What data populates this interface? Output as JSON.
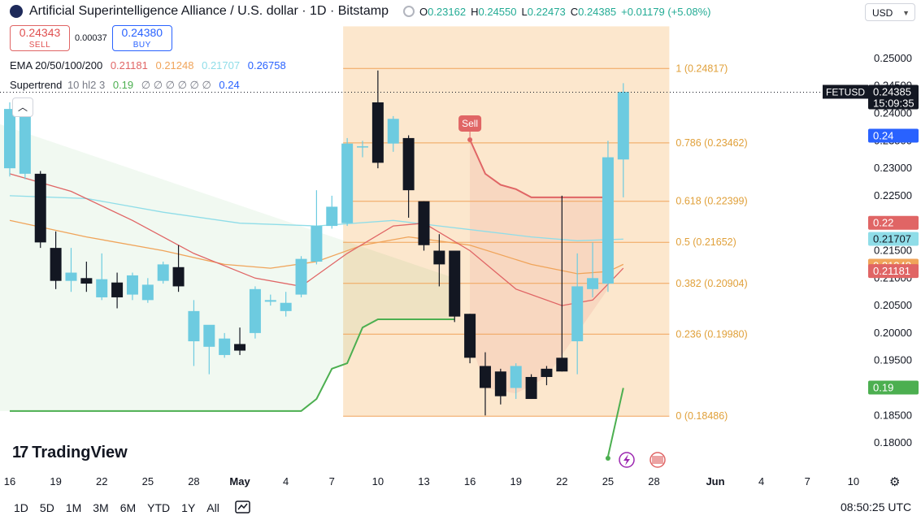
{
  "header": {
    "title": "Artificial Superintelligence Alliance / U.S. dollar · 1D · Bitstamp",
    "o_label": "O",
    "o": "0.23162",
    "h_label": "H",
    "h": "0.24550",
    "l_label": "L",
    "l": "0.22473",
    "c_label": "C",
    "c": "0.24385",
    "change": "+0.01179 (+5.08%)"
  },
  "trade": {
    "sell_price": "0.24343",
    "sell_label": "SELL",
    "spread": "0.00037",
    "buy_price": "0.24380",
    "buy_label": "BUY"
  },
  "indicators": {
    "ema_label": "EMA 20/50/100/200",
    "ema20": "0.21181",
    "ema50": "0.21248",
    "ema100": "0.21707",
    "ema200": "0.26758",
    "st_label": "Supertrend",
    "st_params": "10 hl2 3",
    "st_value": "0.19",
    "st_na": "∅ ∅ ∅ ∅ ∅ ∅",
    "st_value2": "0.24"
  },
  "currency": "USD",
  "symbol_tag": "FETUSD",
  "countdown": "15:09:35",
  "clock": "08:50:25 UTC",
  "timeframes": [
    "1D",
    "5D",
    "1M",
    "3M",
    "6M",
    "YTD",
    "1Y",
    "All"
  ],
  "brand": "TradingView",
  "colors": {
    "up": "#6dcbe0",
    "down": "#131722",
    "ema20": "#e06565",
    "ema50": "#f0a45a",
    "ema100": "#8fdde8",
    "supertrend_up": "#4caf50",
    "supertrend_down": "#e06565",
    "fib": "#f5c16c",
    "fib_fill": "#fbe3c4"
  },
  "chart_data": {
    "type": "candlestick",
    "ylim": [
      0.1775,
      0.2525
    ],
    "yticks": [
      "0.25000",
      "0.24500",
      "0.24000",
      "0.23500",
      "0.23000",
      "0.22500",
      "0.22000",
      "0.21500",
      "0.21000",
      "0.20500",
      "0.20000",
      "0.19500",
      "0.19000",
      "0.18500",
      "0.18000"
    ],
    "xticks": [
      {
        "d": 0,
        "label": "16"
      },
      {
        "d": 3,
        "label": "19"
      },
      {
        "d": 6,
        "label": "22"
      },
      {
        "d": 9,
        "label": "25"
      },
      {
        "d": 12,
        "label": "28"
      },
      {
        "d": 15,
        "label": "May"
      },
      {
        "d": 18,
        "label": "4"
      },
      {
        "d": 21,
        "label": "7"
      },
      {
        "d": 24,
        "label": "10"
      },
      {
        "d": 27,
        "label": "13"
      },
      {
        "d": 30,
        "label": "16"
      },
      {
        "d": 33,
        "label": "19"
      },
      {
        "d": 36,
        "label": "22"
      },
      {
        "d": 39,
        "label": "25"
      },
      {
        "d": 42,
        "label": "28"
      },
      {
        "d": 46,
        "label": "Jun"
      },
      {
        "d": 49,
        "label": "4"
      },
      {
        "d": 52,
        "label": "7"
      },
      {
        "d": 55,
        "label": "10"
      }
    ],
    "candles": [
      {
        "d": 0,
        "o": 0.23,
        "h": 0.242,
        "l": 0.2285,
        "c": 0.2408
      },
      {
        "d": 1,
        "o": 0.229,
        "h": 0.241,
        "l": 0.228,
        "c": 0.2405
      },
      {
        "d": 2,
        "o": 0.229,
        "h": 0.2295,
        "l": 0.2155,
        "c": 0.2165
      },
      {
        "d": 3,
        "o": 0.2155,
        "h": 0.2185,
        "l": 0.208,
        "c": 0.2095
      },
      {
        "d": 4,
        "o": 0.2095,
        "h": 0.2155,
        "l": 0.2075,
        "c": 0.211
      },
      {
        "d": 5,
        "o": 0.21,
        "h": 0.213,
        "l": 0.2075,
        "c": 0.209
      },
      {
        "d": 6,
        "o": 0.2065,
        "h": 0.2145,
        "l": 0.206,
        "c": 0.2098
      },
      {
        "d": 7,
        "o": 0.2092,
        "h": 0.211,
        "l": 0.2045,
        "c": 0.2065
      },
      {
        "d": 8,
        "o": 0.207,
        "h": 0.211,
        "l": 0.206,
        "c": 0.2105
      },
      {
        "d": 9,
        "o": 0.206,
        "h": 0.21,
        "l": 0.2055,
        "c": 0.2088
      },
      {
        "d": 10,
        "o": 0.2095,
        "h": 0.213,
        "l": 0.209,
        "c": 0.2125
      },
      {
        "d": 11,
        "o": 0.212,
        "h": 0.216,
        "l": 0.2075,
        "c": 0.2085
      },
      {
        "d": 12,
        "o": 0.1985,
        "h": 0.206,
        "l": 0.194,
        "c": 0.204
      },
      {
        "d": 13,
        "o": 0.1975,
        "h": 0.201,
        "l": 0.1925,
        "c": 0.2015
      },
      {
        "d": 14,
        "o": 0.196,
        "h": 0.2,
        "l": 0.1955,
        "c": 0.199
      },
      {
        "d": 15,
        "o": 0.198,
        "h": 0.201,
        "l": 0.196,
        "c": 0.1968
      },
      {
        "d": 16,
        "o": 0.2,
        "h": 0.2085,
        "l": 0.199,
        "c": 0.208
      },
      {
        "d": 17,
        "o": 0.2057,
        "h": 0.207,
        "l": 0.205,
        "c": 0.206
      },
      {
        "d": 18,
        "o": 0.204,
        "h": 0.2075,
        "l": 0.203,
        "c": 0.2055
      },
      {
        "d": 19,
        "o": 0.207,
        "h": 0.214,
        "l": 0.2065,
        "c": 0.2135
      },
      {
        "d": 20,
        "o": 0.213,
        "h": 0.226,
        "l": 0.2125,
        "c": 0.2195
      },
      {
        "d": 21,
        "o": 0.2195,
        "h": 0.225,
        "l": 0.219,
        "c": 0.223
      },
      {
        "d": 22,
        "o": 0.22,
        "h": 0.2355,
        "l": 0.2195,
        "c": 0.2345
      },
      {
        "d": 23,
        "o": 0.234,
        "h": 0.235,
        "l": 0.232,
        "c": 0.234
      },
      {
        "d": 24,
        "o": 0.242,
        "h": 0.2478,
        "l": 0.23,
        "c": 0.231
      },
      {
        "d": 25,
        "o": 0.2345,
        "h": 0.2395,
        "l": 0.233,
        "c": 0.239
      },
      {
        "d": 26,
        "o": 0.2355,
        "h": 0.236,
        "l": 0.221,
        "c": 0.226
      },
      {
        "d": 27,
        "o": 0.224,
        "h": 0.224,
        "l": 0.215,
        "c": 0.216
      },
      {
        "d": 28,
        "o": 0.215,
        "h": 0.218,
        "l": 0.2085,
        "c": 0.2125
      },
      {
        "d": 29,
        "o": 0.215,
        "h": 0.215,
        "l": 0.202,
        "c": 0.203
      },
      {
        "d": 30,
        "o": 0.2035,
        "h": 0.2035,
        "l": 0.1945,
        "c": 0.1955
      },
      {
        "d": 31,
        "o": 0.194,
        "h": 0.1965,
        "l": 0.185,
        "c": 0.19
      },
      {
        "d": 32,
        "o": 0.193,
        "h": 0.1935,
        "l": 0.187,
        "c": 0.1885
      },
      {
        "d": 33,
        "o": 0.19,
        "h": 0.1945,
        "l": 0.188,
        "c": 0.194
      },
      {
        "d": 34,
        "o": 0.192,
        "h": 0.1925,
        "l": 0.188,
        "c": 0.188
      },
      {
        "d": 35,
        "o": 0.1935,
        "h": 0.194,
        "l": 0.1905,
        "c": 0.192
      },
      {
        "d": 36,
        "o": 0.1955,
        "h": 0.225,
        "l": 0.193,
        "c": 0.193
      },
      {
        "d": 37,
        "o": 0.1985,
        "h": 0.2145,
        "l": 0.1925,
        "c": 0.2085
      },
      {
        "d": 38,
        "o": 0.208,
        "h": 0.2165,
        "l": 0.2065,
        "c": 0.21
      },
      {
        "d": 39,
        "o": 0.209,
        "h": 0.235,
        "l": 0.2075,
        "c": 0.232
      },
      {
        "d": 40,
        "o": 0.2316,
        "h": 0.2455,
        "l": 0.2247,
        "c": 0.2439
      }
    ],
    "ema20": [
      [
        0,
        0.229
      ],
      [
        4,
        0.2258
      ],
      [
        8,
        0.2205
      ],
      [
        12,
        0.2145
      ],
      [
        16,
        0.21
      ],
      [
        19,
        0.2085
      ],
      [
        22,
        0.2145
      ],
      [
        25,
        0.2195
      ],
      [
        27,
        0.22
      ],
      [
        30,
        0.215
      ],
      [
        33,
        0.208
      ],
      [
        36,
        0.205
      ],
      [
        38,
        0.206
      ],
      [
        40,
        0.2118
      ]
    ],
    "ema50": [
      [
        0,
        0.2205
      ],
      [
        5,
        0.2175
      ],
      [
        10,
        0.215
      ],
      [
        14,
        0.2125
      ],
      [
        17,
        0.2118
      ],
      [
        20,
        0.213
      ],
      [
        23,
        0.216
      ],
      [
        26,
        0.2175
      ],
      [
        30,
        0.216
      ],
      [
        34,
        0.2125
      ],
      [
        37,
        0.2108
      ],
      [
        39,
        0.2112
      ],
      [
        40,
        0.2125
      ]
    ],
    "ema100": [
      [
        0,
        0.225
      ],
      [
        5,
        0.2245
      ],
      [
        10,
        0.222
      ],
      [
        15,
        0.22
      ],
      [
        20,
        0.2195
      ],
      [
        25,
        0.2205
      ],
      [
        28,
        0.2195
      ],
      [
        31,
        0.2185
      ],
      [
        34,
        0.2175
      ],
      [
        37,
        0.2168
      ],
      [
        40,
        0.2171
      ]
    ],
    "supertrend_up": [
      [
        0,
        0.1858
      ],
      [
        19,
        0.1858
      ],
      [
        20,
        0.188
      ],
      [
        21,
        0.1935
      ],
      [
        22,
        0.1945
      ],
      [
        23,
        0.201
      ],
      [
        24,
        0.2025
      ],
      [
        29,
        0.2025
      ]
    ],
    "supertrend_down": [
      [
        30,
        0.2352
      ],
      [
        31,
        0.229
      ],
      [
        32,
        0.227
      ],
      [
        33,
        0.2262
      ],
      [
        34,
        0.2247
      ],
      [
        39,
        0.2247
      ]
    ],
    "supertrend_after": [
      [
        39,
        0.1775
      ],
      [
        40,
        0.19
      ]
    ],
    "sell_label": "Sell",
    "fib": {
      "from_day": 22,
      "to_day": 43,
      "levels": [
        {
          "ratio": "1",
          "value": 0.24817,
          "label": "1 (0.24817)"
        },
        {
          "ratio": "0.786",
          "value": 0.23462,
          "label": "0.786 (0.23462)"
        },
        {
          "ratio": "0.618",
          "value": 0.22399,
          "label": "0.618 (0.22399)"
        },
        {
          "ratio": "0.5",
          "value": 0.21652,
          "label": "0.5 (0.21652)"
        },
        {
          "ratio": "0.382",
          "value": 0.20904,
          "label": "0.382 (0.20904)"
        },
        {
          "ratio": "0.236",
          "value": 0.1998,
          "label": "0.236 (0.19980)"
        },
        {
          "ratio": "0",
          "value": 0.18486,
          "label": "0 (0.18486)"
        }
      ]
    },
    "price_tags": [
      {
        "text": "0.24",
        "value": 0.24,
        "color": "#2962ff",
        "y_offset": 28
      },
      {
        "text": "0.22",
        "value": 0.22,
        "color": "#e06565",
        "y_offset": 0
      },
      {
        "text": "0.21707",
        "value": 0.21707,
        "color": "#8fdde8",
        "y_offset": 0
      },
      {
        "text": "0.21248",
        "value": 0.21248,
        "color": "#f0a45a",
        "y_offset": 2
      },
      {
        "text": "0.21181",
        "value": 0.21181,
        "color": "#e06565",
        "y_offset": 4
      },
      {
        "text": "0.19",
        "value": 0.19,
        "color": "#4caf50",
        "y_offset": 0
      }
    ],
    "last_price": 0.24385
  }
}
